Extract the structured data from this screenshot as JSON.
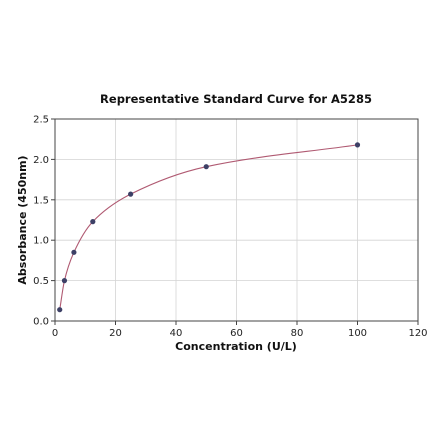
{
  "chart_data": {
    "type": "scatter",
    "title": "Representative Standard Curve for A5285",
    "xlabel": "Concentration (U/L)",
    "ylabel": "Absorbance (450nm)",
    "xlim": [
      0,
      120
    ],
    "ylim": [
      0,
      2.5
    ],
    "xticks": [
      0,
      20,
      40,
      60,
      80,
      100,
      120
    ],
    "yticks": [
      0.0,
      0.5,
      1.0,
      1.5,
      2.0,
      2.5
    ],
    "xtick_labels": [
      "0",
      "20",
      "40",
      "60",
      "80",
      "100",
      "120"
    ],
    "ytick_labels": [
      "0.0",
      "0.5",
      "1.0",
      "1.5",
      "2.0",
      "2.5"
    ],
    "grid": true,
    "points": {
      "x": [
        1.56,
        3.125,
        6.25,
        12.5,
        25,
        50,
        100
      ],
      "y": [
        0.14,
        0.5,
        0.85,
        1.23,
        1.57,
        1.91,
        2.18
      ]
    },
    "fit_curve": true,
    "colors": {
      "curve": "#b05a72",
      "points": "#3d4066"
    }
  }
}
